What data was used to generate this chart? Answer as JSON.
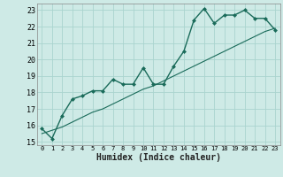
{
  "xlabel": "Humidex (Indice chaleur)",
  "ylabel": "",
  "bg_color": "#ceeae6",
  "grid_color": "#aad4cf",
  "line_color": "#1a6b5a",
  "xlim": [
    -0.5,
    23.5
  ],
  "ylim": [
    14.8,
    23.4
  ],
  "xticks": [
    0,
    1,
    2,
    3,
    4,
    5,
    6,
    7,
    8,
    9,
    10,
    11,
    12,
    13,
    14,
    15,
    16,
    17,
    18,
    19,
    20,
    21,
    22,
    23
  ],
  "yticks": [
    15,
    16,
    17,
    18,
    19,
    20,
    21,
    22,
    23
  ],
  "line1_x": [
    0,
    1,
    2,
    3,
    4,
    5,
    6,
    7,
    8,
    9,
    10,
    11,
    12,
    13,
    14,
    15,
    16,
    17,
    18,
    19,
    20,
    21,
    22,
    23
  ],
  "line1_y": [
    15.8,
    15.2,
    16.6,
    17.6,
    17.8,
    18.1,
    18.1,
    18.8,
    18.5,
    18.5,
    19.5,
    18.5,
    18.5,
    19.6,
    20.5,
    22.4,
    23.1,
    22.2,
    22.7,
    22.7,
    23.0,
    22.5,
    22.5,
    21.8
  ],
  "line2_x": [
    0,
    1,
    2,
    3,
    4,
    5,
    6,
    7,
    8,
    9,
    10,
    11,
    12,
    13,
    14,
    15,
    16,
    17,
    18,
    19,
    20,
    21,
    22,
    23
  ],
  "line2_y": [
    15.5,
    15.7,
    15.9,
    16.2,
    16.5,
    16.8,
    17.0,
    17.3,
    17.6,
    17.9,
    18.2,
    18.4,
    18.7,
    19.0,
    19.3,
    19.6,
    19.9,
    20.2,
    20.5,
    20.8,
    21.1,
    21.4,
    21.7,
    21.9
  ],
  "xlabel_fontsize": 7,
  "xtick_fontsize": 5.0,
  "ytick_fontsize": 6.0,
  "linewidth1": 1.0,
  "linewidth2": 0.8,
  "marker_size": 2.5
}
